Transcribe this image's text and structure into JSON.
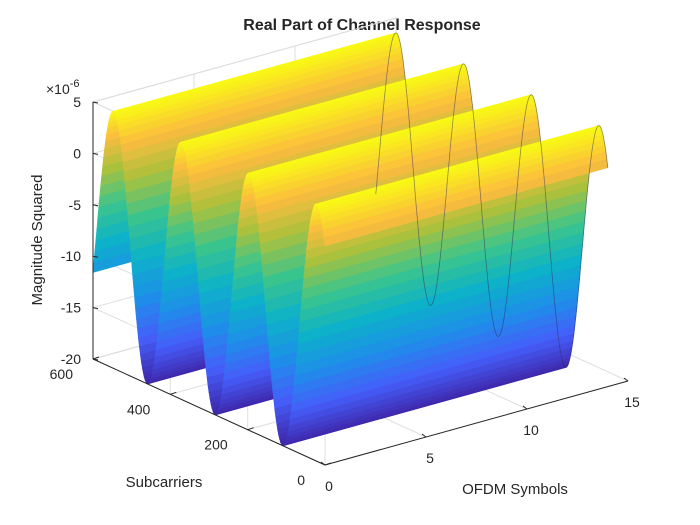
{
  "chart_data": {
    "type": "surface",
    "title": "Real Part of Channel Response",
    "xlabel": "OFDM Symbols",
    "ylabel": "Subcarriers",
    "zlabel": "Magnitude Squared",
    "z_multiplier": "×10",
    "z_exponent": "-6",
    "xlim": [
      0,
      14
    ],
    "ylim": [
      0,
      600
    ],
    "zlim": [
      -20,
      5
    ],
    "xticks": [
      "0",
      "5",
      "10",
      "15"
    ],
    "yticks": [
      "0",
      "200",
      "400",
      "600"
    ],
    "zticks": [
      "-20",
      "-15",
      "-10",
      "-5",
      "0",
      "5"
    ],
    "colormap": "parula",
    "grid": true,
    "surface": {
      "description_function": "z(y) = -7.5e-6 + 12.5e-6 * cos(2*pi*(y-22)/175)",
      "z_max": 5,
      "z_min": -20,
      "peaks_subcarrier": [
        22,
        197,
        372,
        547
      ],
      "troughs_subcarrier": [
        110,
        285,
        460
      ],
      "constant_along_ofdm_symbols": true
    }
  }
}
